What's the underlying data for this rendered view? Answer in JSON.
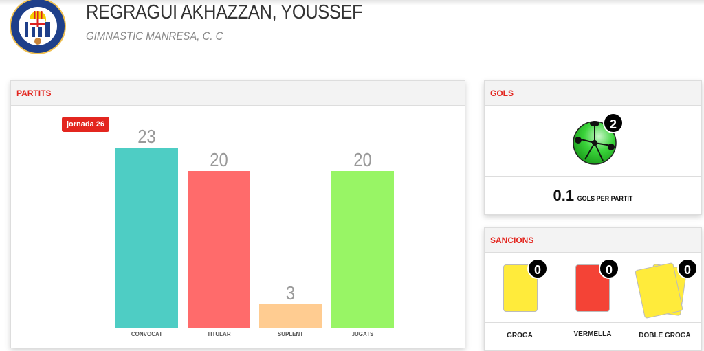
{
  "header": {
    "player_name": "REGRAGUI AKHAZZAN, YOUSSEF",
    "club_name": "GIMNASTIC MANRESA, C. C",
    "logo_text": "GIMNÀSTIC MANRESA 1947"
  },
  "partits": {
    "title": "PARTITS",
    "badge": "jornada 26"
  },
  "chart_data": {
    "type": "bar",
    "categories": [
      "CONVOCAT",
      "TITULAR",
      "SUPLENT",
      "JUGATS"
    ],
    "values": [
      23,
      20,
      3,
      20
    ],
    "colors": [
      "#4ecdc4",
      "#ff6b6b",
      "#ffcc91",
      "#98f565"
    ]
  },
  "gols": {
    "title": "GOLS",
    "count": "2",
    "per_game_value": "0.1",
    "per_game_label": "GOLS PER PARTIT"
  },
  "sancions": {
    "title": "SANCIONS",
    "items": [
      {
        "label": "GROGA",
        "count": "0",
        "color": "#ffeb3b"
      },
      {
        "label": "VERMELLA",
        "count": "0",
        "color": "#f44336"
      },
      {
        "label": "DOBLE GROGA",
        "count": "0",
        "color": "#ffeb3b"
      }
    ]
  }
}
